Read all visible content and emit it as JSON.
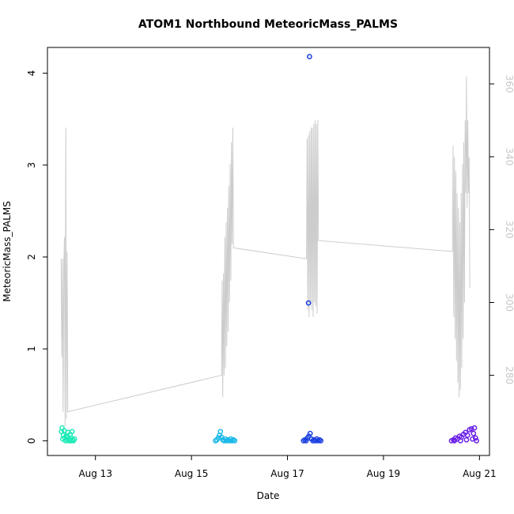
{
  "chart_data": {
    "type": "scatter",
    "title": "ATOM1 Northbound MeteoricMass_PALMS",
    "xlabel": "Date",
    "ylabel": "MeteoricMass_PALMS",
    "xlim": [
      "2016-08-12 00:00",
      "2016-08-21 05:00"
    ],
    "ylim": [
      -0.16,
      4.28
    ],
    "y2lim": [
      258,
      370
    ],
    "x_ticks": [
      {
        "value": "2016-08-13",
        "label": "Aug 13"
      },
      {
        "value": "2016-08-15",
        "label": "Aug 15"
      },
      {
        "value": "2016-08-17",
        "label": "Aug 17"
      },
      {
        "value": "2016-08-19",
        "label": "Aug 19"
      },
      {
        "value": "2016-08-21",
        "label": "Aug 21"
      }
    ],
    "y_ticks": [
      {
        "value": 0,
        "label": "0"
      },
      {
        "value": 1,
        "label": "1"
      },
      {
        "value": 2,
        "label": "2"
      },
      {
        "value": 3,
        "label": "3"
      },
      {
        "value": 4,
        "label": "4"
      }
    ],
    "y2_ticks": [
      {
        "value": 280,
        "label": "280"
      },
      {
        "value": 300,
        "label": "300"
      },
      {
        "value": 320,
        "label": "320"
      },
      {
        "value": 340,
        "label": "340"
      },
      {
        "value": 360,
        "label": "360"
      }
    ],
    "grid": false,
    "legend": "none",
    "series": [
      {
        "color": "#1de9b6",
        "points": [
          [
            "2016-08-12 07:00",
            0.1
          ],
          [
            "2016-08-12 07:20",
            0.14
          ],
          [
            "2016-08-12 07:40",
            0.02
          ],
          [
            "2016-08-12 08:00",
            0.06
          ],
          [
            "2016-08-12 08:20",
            0.11
          ],
          [
            "2016-08-12 08:40",
            0.03
          ],
          [
            "2016-08-12 09:00",
            0.0
          ],
          [
            "2016-08-12 09:20",
            0.05
          ],
          [
            "2016-08-12 09:40",
            0.01
          ],
          [
            "2016-08-12 10:00",
            0.04
          ],
          [
            "2016-08-12 10:20",
            0.09
          ],
          [
            "2016-08-12 10:40",
            0.0
          ],
          [
            "2016-08-12 11:00",
            0.02
          ],
          [
            "2016-08-12 11:20",
            0.07
          ],
          [
            "2016-08-12 11:40",
            0.0
          ],
          [
            "2016-08-12 12:00",
            0.03
          ],
          [
            "2016-08-12 12:20",
            0.1
          ],
          [
            "2016-08-12 12:40",
            0.01
          ],
          [
            "2016-08-12 13:00",
            0.0
          ],
          [
            "2016-08-12 13:30",
            0.02
          ]
        ]
      },
      {
        "color": "#1bb8e8",
        "points": [
          [
            "2016-08-15 12:00",
            0.0
          ],
          [
            "2016-08-15 12:40",
            0.01
          ],
          [
            "2016-08-15 13:20",
            0.03
          ],
          [
            "2016-08-15 14:00",
            0.06
          ],
          [
            "2016-08-15 14:30",
            0.1
          ],
          [
            "2016-08-15 15:00",
            0.04
          ],
          [
            "2016-08-15 15:40",
            0.01
          ],
          [
            "2016-08-15 16:20",
            0.0
          ],
          [
            "2016-08-15 17:00",
            0.02
          ],
          [
            "2016-08-15 17:40",
            0.0
          ],
          [
            "2016-08-15 18:20",
            0.01
          ],
          [
            "2016-08-15 19:00",
            0.0
          ],
          [
            "2016-08-15 19:40",
            0.02
          ],
          [
            "2016-08-15 20:20",
            0.0
          ],
          [
            "2016-08-15 21:00",
            0.01
          ],
          [
            "2016-08-15 21:40",
            0.0
          ]
        ]
      },
      {
        "color": "#1a3fe0",
        "points": [
          [
            "2016-08-17 11:00",
            4.18
          ],
          [
            "2016-08-17 10:30",
            1.5
          ],
          [
            "2016-08-17 08:00",
            0.0
          ],
          [
            "2016-08-17 08:40",
            0.01
          ],
          [
            "2016-08-17 09:20",
            0.0
          ],
          [
            "2016-08-17 10:00",
            0.03
          ],
          [
            "2016-08-17 10:40",
            0.05
          ],
          [
            "2016-08-17 11:20",
            0.08
          ],
          [
            "2016-08-17 12:00",
            0.02
          ],
          [
            "2016-08-17 12:40",
            0.0
          ],
          [
            "2016-08-17 13:20",
            0.01
          ],
          [
            "2016-08-17 14:00",
            0.0
          ],
          [
            "2016-08-17 14:40",
            0.02
          ],
          [
            "2016-08-17 15:20",
            0.0
          ],
          [
            "2016-08-17 16:00",
            0.01
          ],
          [
            "2016-08-17 16:40",
            0.0
          ]
        ]
      },
      {
        "color": "#6a1fe8",
        "points": [
          [
            "2016-08-20 10:00",
            0.0
          ],
          [
            "2016-08-20 11:00",
            0.01
          ],
          [
            "2016-08-20 12:00",
            0.03
          ],
          [
            "2016-08-20 13:00",
            0.02
          ],
          [
            "2016-08-20 14:00",
            0.05
          ],
          [
            "2016-08-20 15:00",
            0.04
          ],
          [
            "2016-08-20 16:00",
            0.07
          ],
          [
            "2016-08-20 17:00",
            0.09
          ],
          [
            "2016-08-20 18:00",
            0.06
          ],
          [
            "2016-08-20 19:00",
            0.12
          ],
          [
            "2016-08-20 20:00",
            0.13
          ],
          [
            "2016-08-20 21:00",
            0.08
          ],
          [
            "2016-08-20 21:30",
            0.14
          ],
          [
            "2016-08-20 22:00",
            0.03
          ],
          [
            "2016-08-20 22:30",
            0.0
          ],
          [
            "2016-08-20 11:30",
            0.0
          ],
          [
            "2016-08-20 14:30",
            0.0
          ],
          [
            "2016-08-20 17:30",
            0.01
          ],
          [
            "2016-08-20 20:30",
            0.02
          ]
        ]
      }
    ],
    "line_series": {
      "axis": "right",
      "color": "#cccccc",
      "points": [
        [
          "2016-08-12 06:50",
          312
        ],
        [
          "2016-08-12 07:10",
          285
        ],
        [
          "2016-08-12 07:30",
          312
        ],
        [
          "2016-08-12 07:50",
          270
        ],
        [
          "2016-08-12 08:10",
          310
        ],
        [
          "2016-08-12 08:30",
          318
        ],
        [
          "2016-08-12 08:50",
          266
        ],
        [
          "2016-08-12 09:10",
          348
        ],
        [
          "2016-08-12 09:30",
          268
        ],
        [
          "2016-08-12 09:50",
          314
        ],
        [
          "2016-08-12 10:10",
          270
        ],
        [
          "2016-08-15 15:00",
          280
        ],
        [
          "2016-08-15 15:20",
          306
        ],
        [
          "2016-08-15 15:40",
          274
        ],
        [
          "2016-08-15 16:00",
          308
        ],
        [
          "2016-08-15 16:20",
          280
        ],
        [
          "2016-08-15 16:40",
          318
        ],
        [
          "2016-08-15 17:00",
          282
        ],
        [
          "2016-08-15 17:20",
          322
        ],
        [
          "2016-08-15 17:40",
          288
        ],
        [
          "2016-08-15 18:00",
          326
        ],
        [
          "2016-08-15 18:20",
          292
        ],
        [
          "2016-08-15 18:40",
          332
        ],
        [
          "2016-08-15 19:00",
          300
        ],
        [
          "2016-08-15 19:20",
          338
        ],
        [
          "2016-08-15 19:40",
          306
        ],
        [
          "2016-08-15 20:00",
          344
        ],
        [
          "2016-08-15 20:20",
          316
        ],
        [
          "2016-08-15 20:40",
          348
        ],
        [
          "2016-08-15 21:00",
          315
        ],
        [
          "2016-08-17 09:30",
          312
        ],
        [
          "2016-08-17 09:50",
          345
        ],
        [
          "2016-08-17 10:10",
          298
        ],
        [
          "2016-08-17 10:30",
          346
        ],
        [
          "2016-08-17 10:50",
          296
        ],
        [
          "2016-08-17 11:10",
          347
        ],
        [
          "2016-08-17 11:30",
          300
        ],
        [
          "2016-08-17 11:50",
          348
        ],
        [
          "2016-08-17 12:10",
          298
        ],
        [
          "2016-08-17 12:30",
          348
        ],
        [
          "2016-08-17 12:50",
          296
        ],
        [
          "2016-08-17 13:10",
          349
        ],
        [
          "2016-08-17 13:30",
          300
        ],
        [
          "2016-08-17 13:50",
          350
        ],
        [
          "2016-08-17 14:10",
          299
        ],
        [
          "2016-08-17 14:30",
          349
        ],
        [
          "2016-08-17 14:50",
          297
        ],
        [
          "2016-08-17 15:10",
          350
        ],
        [
          "2016-08-17 15:30",
          317
        ],
        [
          "2016-08-20 10:30",
          314
        ],
        [
          "2016-08-20 10:50",
          343
        ],
        [
          "2016-08-20 11:10",
          296
        ],
        [
          "2016-08-20 11:30",
          340
        ],
        [
          "2016-08-20 11:50",
          290
        ],
        [
          "2016-08-20 12:10",
          336
        ],
        [
          "2016-08-20 12:30",
          284
        ],
        [
          "2016-08-20 12:50",
          330
        ],
        [
          "2016-08-20 13:10",
          278
        ],
        [
          "2016-08-20 13:30",
          326
        ],
        [
          "2016-08-20 13:50",
          274
        ],
        [
          "2016-08-20 14:10",
          322
        ],
        [
          "2016-08-20 14:30",
          276
        ],
        [
          "2016-08-20 14:50",
          330
        ],
        [
          "2016-08-20 15:10",
          282
        ],
        [
          "2016-08-20 15:30",
          338
        ],
        [
          "2016-08-20 15:50",
          290
        ],
        [
          "2016-08-20 16:10",
          344
        ],
        [
          "2016-08-20 16:30",
          300
        ],
        [
          "2016-08-20 16:50",
          350
        ],
        [
          "2016-08-20 17:10",
          330
        ],
        [
          "2016-08-20 17:30",
          362
        ],
        [
          "2016-08-20 17:50",
          326
        ],
        [
          "2016-08-20 18:10",
          350
        ],
        [
          "2016-08-20 18:30",
          330
        ],
        [
          "2016-08-20 18:50",
          340
        ],
        [
          "2016-08-20 19:10",
          304
        ]
      ]
    }
  }
}
